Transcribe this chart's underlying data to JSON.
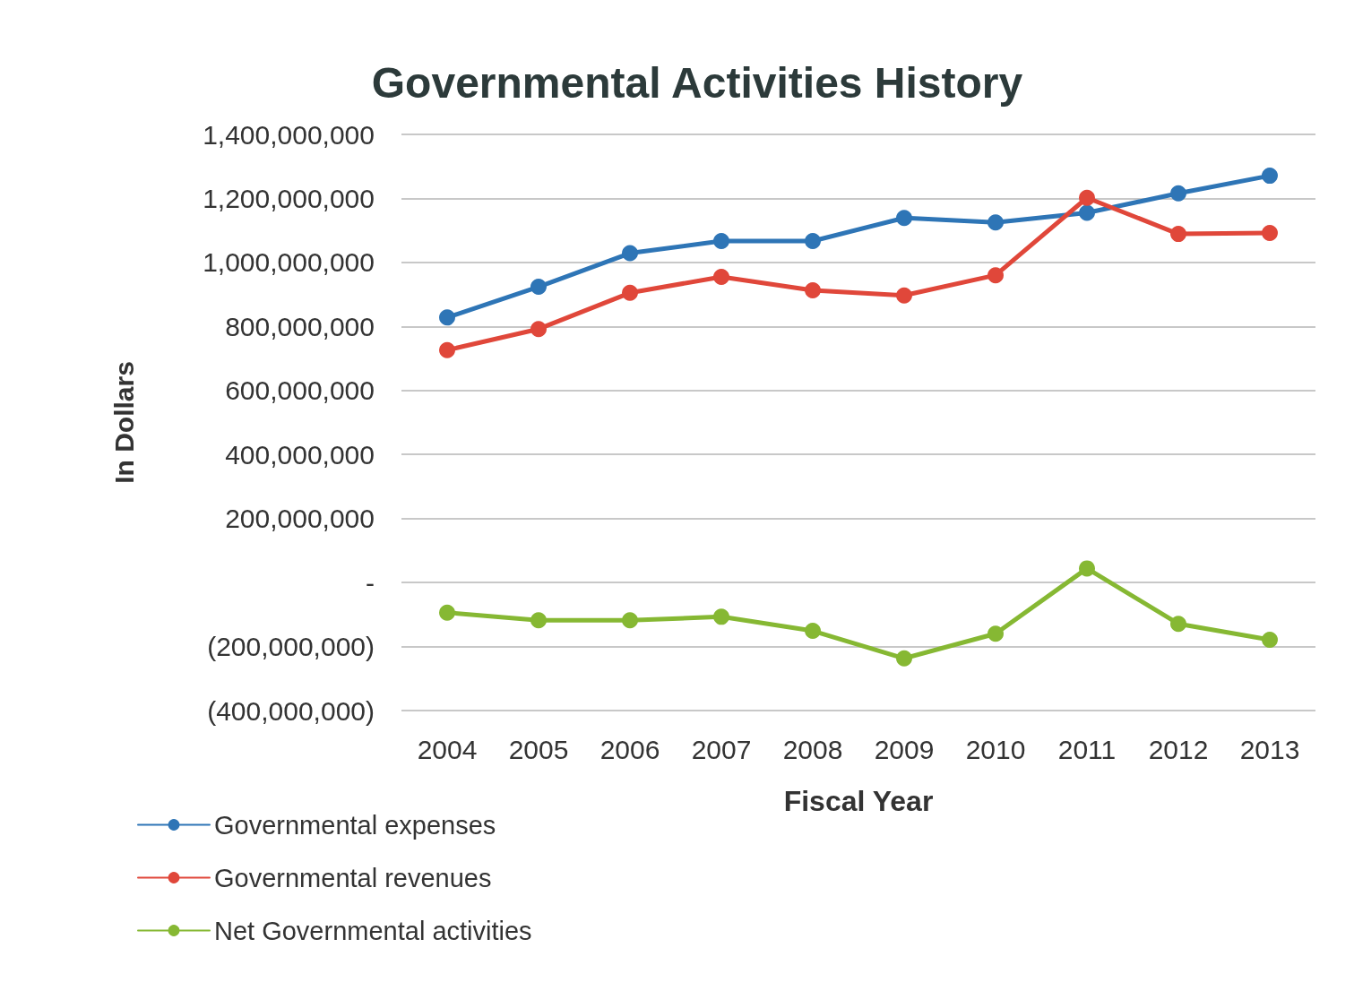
{
  "chart_data": {
    "type": "line",
    "title": "Governmental Activities History",
    "xlabel": "Fiscal Year",
    "ylabel": "In Dollars",
    "categories": [
      "2004",
      "2005",
      "2006",
      "2007",
      "2008",
      "2009",
      "2010",
      "2011",
      "2012",
      "2013"
    ],
    "series": [
      {
        "name": "Governmental expenses",
        "color": "#2e75b6",
        "values": [
          828000000,
          924000000,
          1029000000,
          1067000000,
          1067000000,
          1139000000,
          1125000000,
          1155000000,
          1216000000,
          1271000000
        ]
      },
      {
        "name": "Governmental revenues",
        "color": "#e0473a",
        "values": [
          726000000,
          792000000,
          905000000,
          955000000,
          913000000,
          897000000,
          960000000,
          1202000000,
          1089000000,
          1092000000
        ]
      },
      {
        "name": "Net Governmental activities",
        "color": "#86b833",
        "values": [
          -94000000,
          -118000000,
          -118000000,
          -107000000,
          -151000000,
          -237000000,
          -160000000,
          44000000,
          -129000000,
          -179000000
        ]
      }
    ],
    "ylim": [
      -400000000,
      1400000000
    ],
    "yticks": [
      {
        "value": -400000000,
        "label": "(400,000,000)"
      },
      {
        "value": -200000000,
        "label": "(200,000,000)"
      },
      {
        "value": 0,
        "label": "-"
      },
      {
        "value": 200000000,
        "label": "200,000,000"
      },
      {
        "value": 400000000,
        "label": "400,000,000"
      },
      {
        "value": 600000000,
        "label": "600,000,000"
      },
      {
        "value": 800000000,
        "label": "800,000,000"
      },
      {
        "value": 1000000000,
        "label": "1,000,000,000"
      },
      {
        "value": 1200000000,
        "label": "1,200,000,000"
      },
      {
        "value": 1400000000,
        "label": "1,400,000,000"
      }
    ],
    "grid": "y",
    "legend": "bottom left",
    "marker": "circle",
    "line_style": "solid"
  }
}
